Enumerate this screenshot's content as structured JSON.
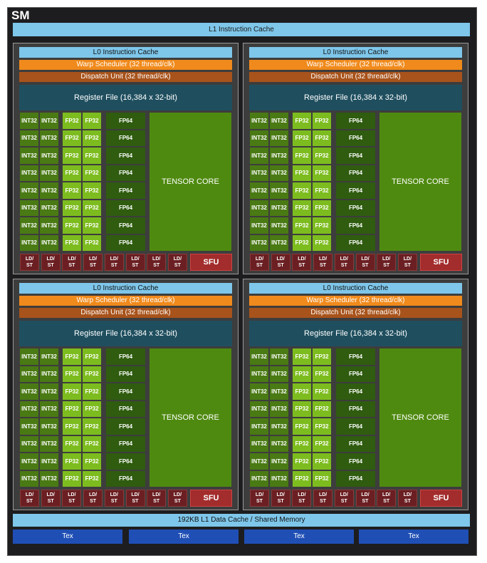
{
  "sm_label": "SM",
  "l1_instruction_cache": "L1 Instruction Cache",
  "l1_data_cache": "192KB L1 Data Cache / Shared Memory",
  "tex_label": "Tex",
  "subpartition": {
    "l0_cache": "L0 Instruction Cache",
    "warp_scheduler": "Warp Scheduler (32 thread/clk)",
    "dispatch_unit": "Dispatch Unit (32 thread/clk)",
    "register_file": "Register File (16,384 x 32-bit)",
    "int32": "INT32",
    "fp32": "FP32",
    "fp64": "FP64",
    "tensor_core": "TENSOR CORE",
    "ldst": "LD/\nST",
    "sfu": "SFU"
  },
  "colors": {
    "background": "#1d1d1f",
    "cache": "#7ec6ea",
    "warp_scheduler": "#f08a1c",
    "dispatch_unit": "#a8531b",
    "register_file": "#1f4f5f",
    "int32": "#4a7a14",
    "fp32": "#7dbc1f",
    "fp64": "#2f5c0f",
    "tensor_core": "#4f8a10",
    "ldst": "#6b1f22",
    "sfu": "#a32c2c",
    "tex": "#1f4fb5"
  }
}
